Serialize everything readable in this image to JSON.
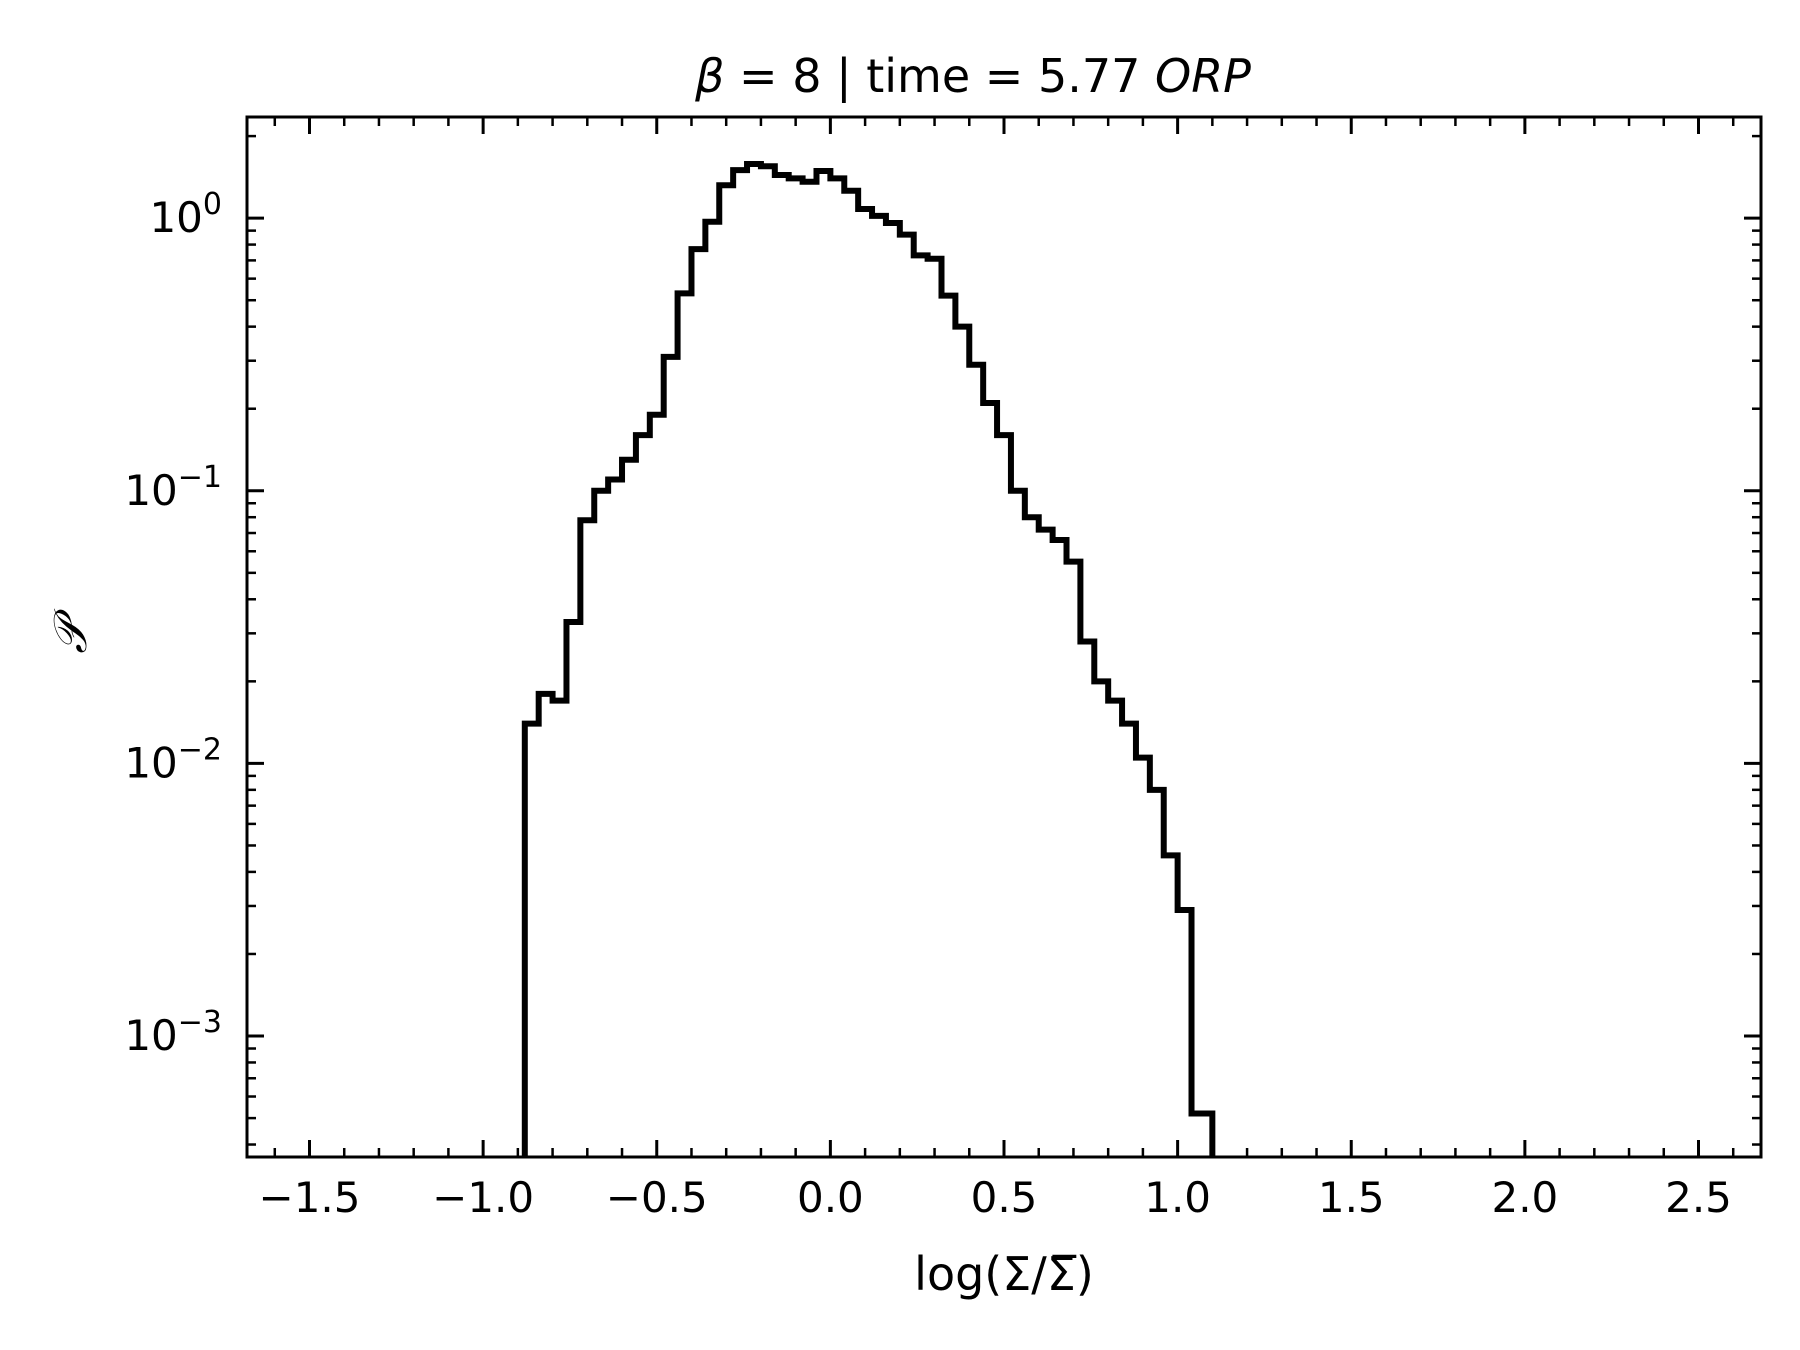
{
  "chart_data": {
    "type": "step-histogram",
    "title_parts": {
      "symbol": "β",
      "middle": " = 8 | time = 5.77 ",
      "unit": "ORP"
    },
    "xlabel": "log(Σ/Σ̅)",
    "ylabel": "𝒫",
    "xlim": [
      -1.68,
      2.68
    ],
    "ylim": [
      0.00036,
      2.35
    ],
    "yscale": "log",
    "x_ticks": [
      -1.5,
      -1.0,
      -0.5,
      0.0,
      0.5,
      1.0,
      1.5,
      2.0,
      2.5
    ],
    "x_tick_labels": [
      "−1.5",
      "−1.0",
      "−0.5",
      "0.0",
      "0.5",
      "1.0",
      "1.5",
      "2.0",
      "2.5"
    ],
    "y_ticks": [
      1,
      0.1,
      0.01,
      0.001
    ],
    "y_tick_labels": [
      {
        "base": "10",
        "exp": "0"
      },
      {
        "base": "10",
        "exp": "−1"
      },
      {
        "base": "10",
        "exp": "−2"
      },
      {
        "base": "10",
        "exp": "−3"
      }
    ],
    "grid": false,
    "line_color": "#000000",
    "bin_edges": [
      -0.88,
      -0.84,
      -0.8,
      -0.76,
      -0.72,
      -0.68,
      -0.64,
      -0.6,
      -0.56,
      -0.52,
      -0.48,
      -0.44,
      -0.4,
      -0.36,
      -0.32,
      -0.28,
      -0.24,
      -0.2,
      -0.16,
      -0.12,
      -0.08,
      -0.04,
      0.0,
      0.04,
      0.08,
      0.12,
      0.16,
      0.2,
      0.24,
      0.28,
      0.32,
      0.36,
      0.4,
      0.44,
      0.48,
      0.52,
      0.56,
      0.6,
      0.64,
      0.68,
      0.72,
      0.76,
      0.8,
      0.84,
      0.88,
      0.92,
      0.96,
      1.0,
      1.04,
      1.08,
      1.1
    ],
    "values": [
      0.014,
      0.018,
      0.017,
      0.033,
      0.078,
      0.1,
      0.11,
      0.13,
      0.16,
      0.19,
      0.31,
      0.53,
      0.77,
      0.97,
      1.32,
      1.5,
      1.58,
      1.55,
      1.44,
      1.4,
      1.36,
      1.49,
      1.4,
      1.26,
      1.08,
      1.02,
      0.96,
      0.87,
      0.73,
      0.71,
      0.52,
      0.4,
      0.29,
      0.21,
      0.16,
      0.1,
      0.08,
      0.072,
      0.066,
      0.055,
      0.028,
      0.02,
      0.017,
      0.014,
      0.0105,
      0.008,
      0.0046,
      0.0029,
      0.00052,
      0.00052
    ]
  }
}
